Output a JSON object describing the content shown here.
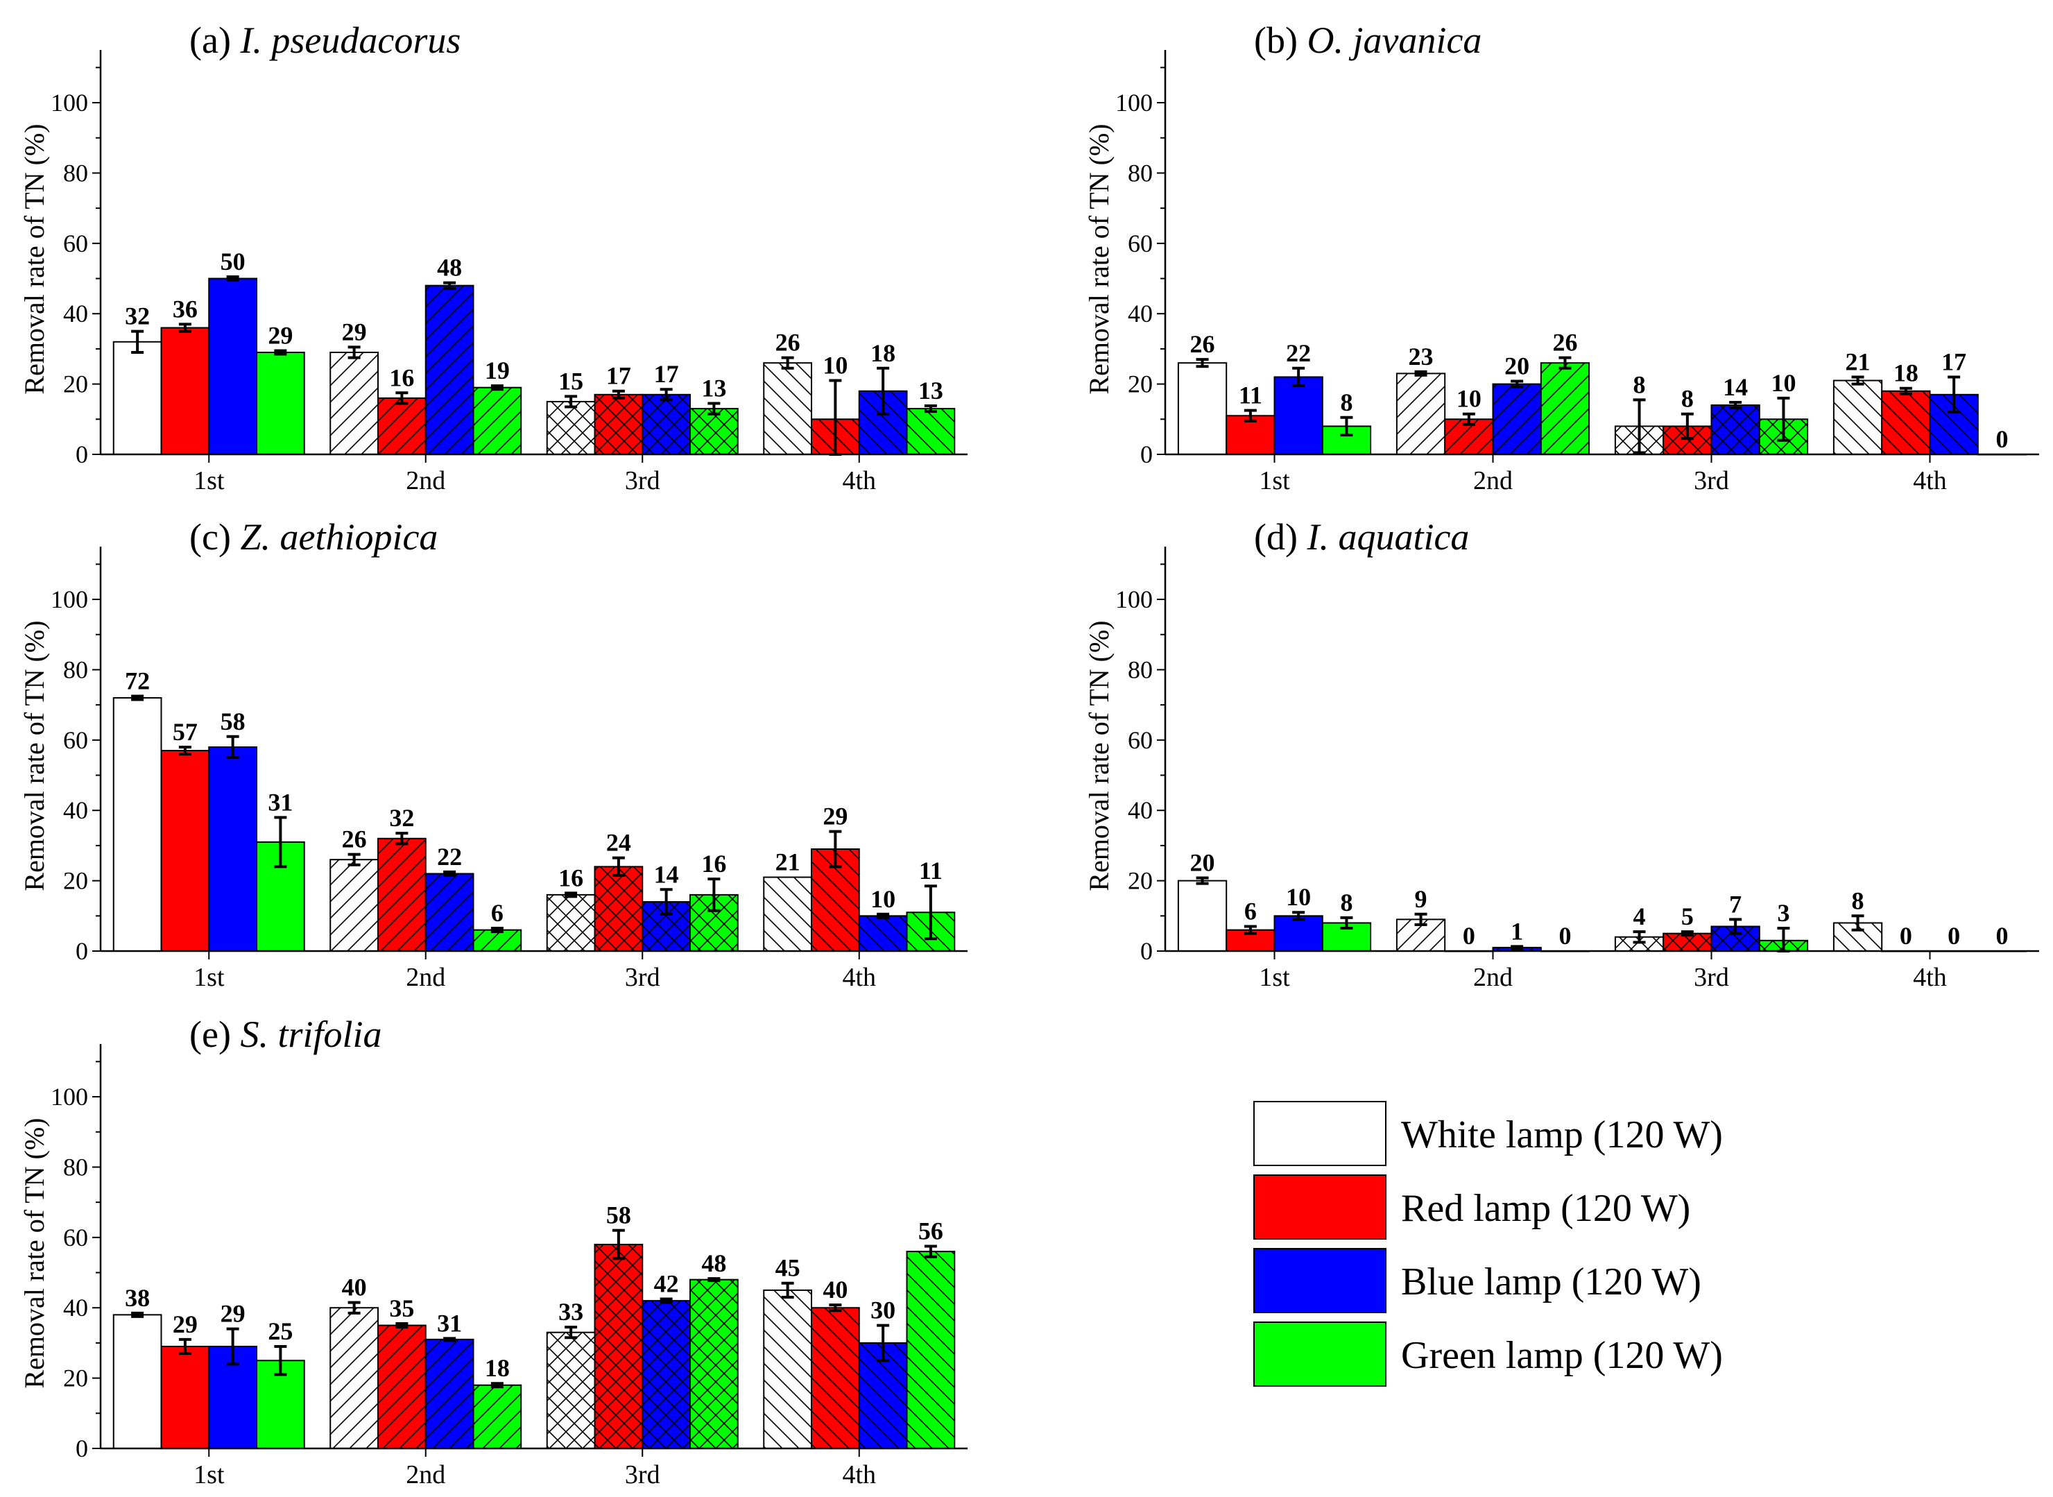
{
  "legend": {
    "items": [
      {
        "key": "white",
        "label": "White lamp (120 W)",
        "color": "#ffffff"
      },
      {
        "key": "red",
        "label": "Red lamp (120 W)",
        "color": "#ff0000"
      },
      {
        "key": "blue",
        "label": "Blue lamp (120 W)",
        "color": "#0000ff"
      },
      {
        "key": "green",
        "label": "Green lamp (120 W)",
        "color": "#00ff00"
      }
    ]
  },
  "patterns": {
    "1st": "none",
    "2nd": "forward-diagonal",
    "3rd": "cross-hatch",
    "4th": "back-diagonal"
  },
  "chart_data": [
    {
      "type": "bar",
      "panel": "(a)",
      "title_prefix": "(a)",
      "title_species": "I. pseudacorus",
      "ylabel": "Removal rate of TN (%)",
      "ylim": [
        0,
        115
      ],
      "yticks": [
        0,
        20,
        40,
        60,
        80,
        100
      ],
      "categories": [
        "1st",
        "2nd",
        "3rd",
        "4th"
      ],
      "series": [
        {
          "name": "White lamp (120 W)",
          "values": [
            32,
            29,
            15,
            26
          ],
          "errors": [
            3,
            1.5,
            1.5,
            1.5
          ]
        },
        {
          "name": "Red lamp (120 W)",
          "values": [
            36,
            16,
            17,
            10
          ],
          "errors": [
            1,
            1.5,
            1,
            11
          ]
        },
        {
          "name": "Blue lamp (120 W)",
          "values": [
            50,
            48,
            17,
            18
          ],
          "errors": [
            0.5,
            0.8,
            1.5,
            6.5
          ]
        },
        {
          "name": "Green lamp (120 W)",
          "values": [
            29,
            19,
            13,
            13
          ],
          "errors": [
            0.5,
            0.5,
            1.5,
            0.8
          ]
        }
      ]
    },
    {
      "type": "bar",
      "panel": "(b)",
      "title_prefix": "(b)",
      "title_species": "O. javanica",
      "ylabel": "Removal rate of TN (%)",
      "ylim": [
        0,
        115
      ],
      "yticks": [
        0,
        20,
        40,
        60,
        80,
        100
      ],
      "categories": [
        "1st",
        "2nd",
        "3rd",
        "4th"
      ],
      "series": [
        {
          "name": "White lamp (120 W)",
          "values": [
            26,
            23,
            8,
            21
          ],
          "errors": [
            1,
            0.5,
            7.5,
            1
          ]
        },
        {
          "name": "Red lamp (120 W)",
          "values": [
            11,
            10,
            8,
            18
          ],
          "errors": [
            1.5,
            1.5,
            3.5,
            0.8
          ]
        },
        {
          "name": "Blue lamp (120 W)",
          "values": [
            22,
            20,
            14,
            17
          ],
          "errors": [
            2.5,
            0.8,
            0.8,
            5
          ]
        },
        {
          "name": "Green lamp (120 W)",
          "values": [
            8,
            26,
            10,
            0
          ],
          "errors": [
            2.5,
            1.5,
            6,
            0
          ]
        }
      ]
    },
    {
      "type": "bar",
      "panel": "(c)",
      "title_prefix": "(c)",
      "title_species": "Z. aethiopica",
      "ylabel": "Removal rate of TN (%)",
      "ylim": [
        0,
        115
      ],
      "yticks": [
        0,
        20,
        40,
        60,
        80,
        100
      ],
      "categories": [
        "1st",
        "2nd",
        "3rd",
        "4th"
      ],
      "series": [
        {
          "name": "White lamp (120 W)",
          "values": [
            72,
            26,
            16,
            21
          ],
          "errors": [
            0.5,
            1.5,
            0.5,
            0
          ]
        },
        {
          "name": "Red lamp (120 W)",
          "values": [
            57,
            32,
            24,
            29
          ],
          "errors": [
            1,
            1.5,
            2.5,
            5
          ]
        },
        {
          "name": "Blue lamp (120 W)",
          "values": [
            58,
            22,
            14,
            10
          ],
          "errors": [
            3,
            0.5,
            3.5,
            0.5
          ]
        },
        {
          "name": "Green lamp (120 W)",
          "values": [
            31,
            6,
            16,
            11
          ],
          "errors": [
            7,
            0.5,
            4.5,
            7.5
          ]
        }
      ]
    },
    {
      "type": "bar",
      "panel": "(d)",
      "title_prefix": "(d)",
      "title_species": "I. aquatica",
      "ylabel": "Removal rate of TN (%)",
      "ylim": [
        0,
        115
      ],
      "yticks": [
        0,
        20,
        40,
        60,
        80,
        100
      ],
      "categories": [
        "1st",
        "2nd",
        "3rd",
        "4th"
      ],
      "series": [
        {
          "name": "White lamp (120 W)",
          "values": [
            20,
            9,
            4,
            8
          ],
          "errors": [
            0.8,
            1.5,
            1.5,
            2
          ]
        },
        {
          "name": "Red lamp (120 W)",
          "values": [
            6,
            0,
            5,
            0
          ],
          "errors": [
            1,
            0,
            0.5,
            0
          ]
        },
        {
          "name": "Blue lamp (120 W)",
          "values": [
            10,
            1,
            7,
            0
          ],
          "errors": [
            1,
            0.3,
            2,
            0
          ]
        },
        {
          "name": "Green lamp (120 W)",
          "values": [
            8,
            0,
            3,
            0
          ],
          "errors": [
            1.5,
            0,
            3.5,
            0
          ]
        }
      ]
    },
    {
      "type": "bar",
      "panel": "(e)",
      "title_prefix": "(e)",
      "title_species": "S. trifolia",
      "ylabel": "Removal rate of TN (%)",
      "ylim": [
        0,
        115
      ],
      "yticks": [
        0,
        20,
        40,
        60,
        80,
        100
      ],
      "categories": [
        "1st",
        "2nd",
        "3rd",
        "4th"
      ],
      "series": [
        {
          "name": "White lamp (120 W)",
          "values": [
            38,
            40,
            33,
            45
          ],
          "errors": [
            0.5,
            1.5,
            1.5,
            2
          ]
        },
        {
          "name": "Red lamp (120 W)",
          "values": [
            29,
            35,
            58,
            40
          ],
          "errors": [
            2,
            0.5,
            4,
            0.8
          ]
        },
        {
          "name": "Blue lamp (120 W)",
          "values": [
            29,
            31,
            42,
            30
          ],
          "errors": [
            5,
            0.3,
            0.5,
            5
          ]
        },
        {
          "name": "Green lamp (120 W)",
          "values": [
            25,
            18,
            48,
            56
          ],
          "errors": [
            4,
            0.5,
            0.3,
            1.5
          ]
        }
      ]
    }
  ]
}
